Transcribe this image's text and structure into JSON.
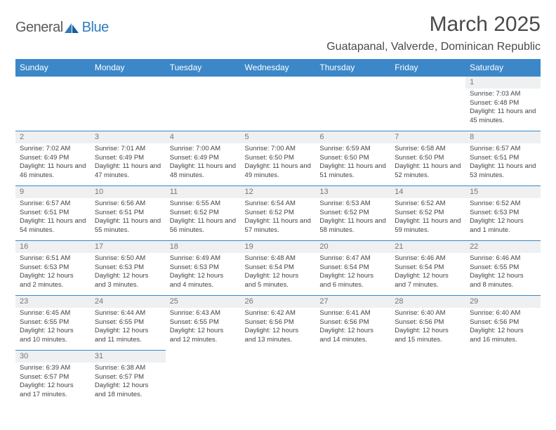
{
  "logo": {
    "text_a": "General",
    "text_b": "Blue"
  },
  "title": "March 2025",
  "location": "Guatapanal, Valverde, Dominican Republic",
  "colors": {
    "header_bg": "#3b87c8",
    "header_fg": "#ffffff",
    "daynum_bg": "#eef0f1",
    "rule": "#3b87c8",
    "logo_blue": "#2f7bbf",
    "text": "#444444"
  },
  "typography": {
    "title_fontsize": 30,
    "location_fontsize": 16,
    "header_fontsize": 12,
    "cell_fontsize": 9.5
  },
  "day_headers": [
    "Sunday",
    "Monday",
    "Tuesday",
    "Wednesday",
    "Thursday",
    "Friday",
    "Saturday"
  ],
  "weeks": [
    [
      null,
      null,
      null,
      null,
      null,
      null,
      {
        "n": "1",
        "sr": "7:03 AM",
        "ss": "6:48 PM",
        "dl": "11 hours and 45 minutes."
      }
    ],
    [
      {
        "n": "2",
        "sr": "7:02 AM",
        "ss": "6:49 PM",
        "dl": "11 hours and 46 minutes."
      },
      {
        "n": "3",
        "sr": "7:01 AM",
        "ss": "6:49 PM",
        "dl": "11 hours and 47 minutes."
      },
      {
        "n": "4",
        "sr": "7:00 AM",
        "ss": "6:49 PM",
        "dl": "11 hours and 48 minutes."
      },
      {
        "n": "5",
        "sr": "7:00 AM",
        "ss": "6:50 PM",
        "dl": "11 hours and 49 minutes."
      },
      {
        "n": "6",
        "sr": "6:59 AM",
        "ss": "6:50 PM",
        "dl": "11 hours and 51 minutes."
      },
      {
        "n": "7",
        "sr": "6:58 AM",
        "ss": "6:50 PM",
        "dl": "11 hours and 52 minutes."
      },
      {
        "n": "8",
        "sr": "6:57 AM",
        "ss": "6:51 PM",
        "dl": "11 hours and 53 minutes."
      }
    ],
    [
      {
        "n": "9",
        "sr": "6:57 AM",
        "ss": "6:51 PM",
        "dl": "11 hours and 54 minutes."
      },
      {
        "n": "10",
        "sr": "6:56 AM",
        "ss": "6:51 PM",
        "dl": "11 hours and 55 minutes."
      },
      {
        "n": "11",
        "sr": "6:55 AM",
        "ss": "6:52 PM",
        "dl": "11 hours and 56 minutes."
      },
      {
        "n": "12",
        "sr": "6:54 AM",
        "ss": "6:52 PM",
        "dl": "11 hours and 57 minutes."
      },
      {
        "n": "13",
        "sr": "6:53 AM",
        "ss": "6:52 PM",
        "dl": "11 hours and 58 minutes."
      },
      {
        "n": "14",
        "sr": "6:52 AM",
        "ss": "6:52 PM",
        "dl": "11 hours and 59 minutes."
      },
      {
        "n": "15",
        "sr": "6:52 AM",
        "ss": "6:53 PM",
        "dl": "12 hours and 1 minute."
      }
    ],
    [
      {
        "n": "16",
        "sr": "6:51 AM",
        "ss": "6:53 PM",
        "dl": "12 hours and 2 minutes."
      },
      {
        "n": "17",
        "sr": "6:50 AM",
        "ss": "6:53 PM",
        "dl": "12 hours and 3 minutes."
      },
      {
        "n": "18",
        "sr": "6:49 AM",
        "ss": "6:53 PM",
        "dl": "12 hours and 4 minutes."
      },
      {
        "n": "19",
        "sr": "6:48 AM",
        "ss": "6:54 PM",
        "dl": "12 hours and 5 minutes."
      },
      {
        "n": "20",
        "sr": "6:47 AM",
        "ss": "6:54 PM",
        "dl": "12 hours and 6 minutes."
      },
      {
        "n": "21",
        "sr": "6:46 AM",
        "ss": "6:54 PM",
        "dl": "12 hours and 7 minutes."
      },
      {
        "n": "22",
        "sr": "6:46 AM",
        "ss": "6:55 PM",
        "dl": "12 hours and 8 minutes."
      }
    ],
    [
      {
        "n": "23",
        "sr": "6:45 AM",
        "ss": "6:55 PM",
        "dl": "12 hours and 10 minutes."
      },
      {
        "n": "24",
        "sr": "6:44 AM",
        "ss": "6:55 PM",
        "dl": "12 hours and 11 minutes."
      },
      {
        "n": "25",
        "sr": "6:43 AM",
        "ss": "6:55 PM",
        "dl": "12 hours and 12 minutes."
      },
      {
        "n": "26",
        "sr": "6:42 AM",
        "ss": "6:56 PM",
        "dl": "12 hours and 13 minutes."
      },
      {
        "n": "27",
        "sr": "6:41 AM",
        "ss": "6:56 PM",
        "dl": "12 hours and 14 minutes."
      },
      {
        "n": "28",
        "sr": "6:40 AM",
        "ss": "6:56 PM",
        "dl": "12 hours and 15 minutes."
      },
      {
        "n": "29",
        "sr": "6:40 AM",
        "ss": "6:56 PM",
        "dl": "12 hours and 16 minutes."
      }
    ],
    [
      {
        "n": "30",
        "sr": "6:39 AM",
        "ss": "6:57 PM",
        "dl": "12 hours and 17 minutes."
      },
      {
        "n": "31",
        "sr": "6:38 AM",
        "ss": "6:57 PM",
        "dl": "12 hours and 18 minutes."
      },
      null,
      null,
      null,
      null,
      null
    ]
  ],
  "labels": {
    "sunrise": "Sunrise:",
    "sunset": "Sunset:",
    "daylight": "Daylight:"
  }
}
